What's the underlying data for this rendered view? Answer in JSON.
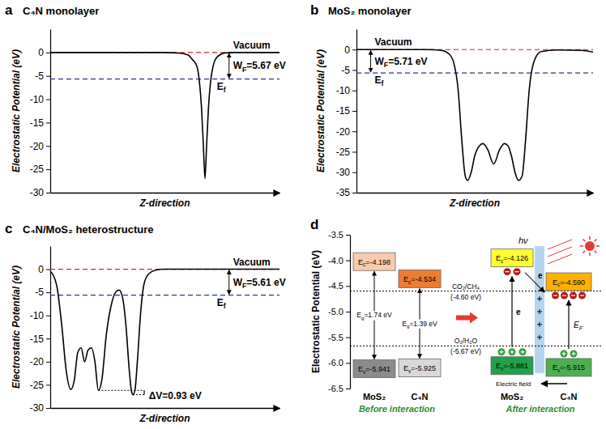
{
  "chart_data": [
    {
      "type": "line",
      "panel_label": "a",
      "title": "C₄N monolayer",
      "x_label": "Z-direction",
      "y_label": "Electrostatic Potential (eV)",
      "xlim": [
        0,
        100
      ],
      "ylim": [
        -30,
        5
      ],
      "yticks": [
        0,
        -5,
        -10,
        -15,
        -20,
        -25,
        -30
      ],
      "tick_labels": "y",
      "color": "#000000",
      "x": [
        0,
        50,
        56,
        60,
        62,
        64,
        65,
        66,
        66.8,
        67.5,
        68.2,
        69,
        70,
        71,
        72,
        74,
        76,
        80,
        100
      ],
      "values": [
        0,
        0,
        -0.1,
        -0.5,
        -1.5,
        -3,
        -6,
        -12,
        -20,
        -27,
        -20,
        -12,
        -6,
        -3,
        -1.5,
        -0.5,
        -0.1,
        0,
        0
      ],
      "levels": [
        {
          "label": "Vacuum",
          "value": 0,
          "color": "#c62828",
          "line_style": "dashed"
        },
        {
          "label": [
            "E",
            "f"
          ],
          "value": -5.67,
          "color": "#2e3192",
          "line_style": "dashed"
        }
      ],
      "work_function": {
        "label": [
          "W",
          "F",
          "=5.67 eV"
        ]
      }
    },
    {
      "type": "line",
      "panel_label": "b",
      "title": "MoS₂ monolayer",
      "x_label": "Z-direction",
      "y_label": "Electrostatic Potential (eV)",
      "xlim": [
        0,
        100
      ],
      "ylim": [
        -35,
        5
      ],
      "yticks": [
        0,
        -5,
        -10,
        -15,
        -20,
        -25,
        -30,
        -35
      ],
      "tick_labels": "y",
      "color": "#000000",
      "x": [
        0,
        30,
        36,
        39,
        41,
        43,
        44.5,
        46,
        47,
        48.5,
        50,
        52,
        53.5,
        55.5,
        58,
        60.5,
        62.5,
        64,
        65.5,
        67,
        68.5,
        70,
        71.5,
        73,
        75,
        78,
        85,
        95,
        100
      ],
      "values": [
        0,
        0,
        -0.2,
        -1,
        -3,
        -10,
        -22,
        -31,
        -32,
        -30,
        -26,
        -23.5,
        -23,
        -24.5,
        -28,
        -24.5,
        -23,
        -23.5,
        -26,
        -30,
        -32,
        -31,
        -22,
        -10,
        -3,
        -0.5,
        -0.1,
        -0.2,
        -0.6
      ],
      "levels": [
        {
          "label": "Vacuum",
          "value": 0,
          "color": "#c62828",
          "line_style": "dashed"
        },
        {
          "label": [
            "E",
            "f"
          ],
          "value": -5.71,
          "color": "#2e3192",
          "line_style": "dashed"
        }
      ],
      "work_function": {
        "label": [
          "W",
          "F",
          "=5.71 eV"
        ]
      }
    },
    {
      "type": "line",
      "panel_label": "c",
      "title": "C₄N/MoS₂ heterostructure",
      "x_label": "Z-direction",
      "y_label": "Electrostatic Potential (eV)",
      "xlim": [
        0,
        100
      ],
      "ylim": [
        -30,
        5
      ],
      "yticks": [
        0,
        -5,
        -10,
        -15,
        -20,
        -25,
        -30
      ],
      "tick_labels": "y",
      "color": "#000000",
      "x": [
        0,
        1,
        3,
        5,
        7,
        9,
        10.5,
        12,
        13.5,
        15,
        16.5,
        18,
        19.5,
        21,
        22.5,
        24.5,
        26.5,
        28.5,
        30,
        31.5,
        33,
        34.5,
        35.5,
        36.2,
        37,
        38,
        39.5,
        41,
        43,
        46,
        50,
        100
      ],
      "values": [
        -0.5,
        -1,
        -4,
        -12,
        -22,
        -26,
        -24,
        -18,
        -17,
        -20,
        -17.5,
        -17,
        -20,
        -26.2,
        -24,
        -14,
        -8,
        -5,
        -4.5,
        -6,
        -12,
        -22,
        -26.5,
        -27.13,
        -26,
        -20,
        -9,
        -3,
        -1,
        -0.2,
        0,
        0
      ],
      "levels": [
        {
          "label": "Vacuum",
          "value": 0,
          "color": "#c62828",
          "line_style": "dashed"
        },
        {
          "label": [
            "E",
            "f"
          ],
          "value": -5.61,
          "color": "#2e3192",
          "line_style": "dashed"
        }
      ],
      "work_function": {
        "label": [
          "W",
          "F",
          "=5.61 eV"
        ]
      },
      "delta_v": {
        "label": "ΔV=0.93 eV",
        "levels": [
          -26.2,
          -27.13
        ],
        "line_style": "dotted"
      }
    },
    {
      "type": "energy_levels",
      "panel_label": "d",
      "y_label": "Electrostatic Potential (eV)",
      "ylim": [
        -6.5,
        -3.5
      ],
      "yticks": [
        -3.5,
        {
          "value": -4,
          "label": "-4.0"
        },
        -4.5,
        {
          "value": -5,
          "label": "-5.0"
        },
        -5.5,
        {
          "value": -6,
          "label": "-6.0"
        },
        -6.5
      ],
      "groups": [
        {
          "label": "Before interaction",
          "color": "#2e8b2e",
          "columns": [
            {
              "name": "MoS₂",
              "ec": -4.198,
              "ev": -5.941,
              "ec_label": [
                "E",
                "c",
                "=-4.198"
              ],
              "ev_label": [
                "E",
                "v",
                "=-5.941"
              ],
              "gap_label": [
                "E",
                "g",
                "=1.74 eV"
              ],
              "colors": [
                "#f8cbad",
                "#8c8c8c"
              ]
            },
            {
              "name": "C₄N",
              "ec": -4.534,
              "ev": -5.925,
              "ec_label": [
                "E",
                "c",
                "=-4.534"
              ],
              "ev_label": [
                "E",
                "v",
                "=-5.925"
              ],
              "gap_label": [
                "E",
                "g",
                "=1.39 eV"
              ],
              "colors": [
                "#ed7d31",
                "#d9d9d9"
              ]
            }
          ]
        },
        {
          "label": "After interaction",
          "color": "#2e8b2e",
          "columns": [
            {
              "name": "MoS₂",
              "ec": -4.126,
              "ev": -5.881,
              "ec_label": [
                "E",
                "c",
                "=-4.126"
              ],
              "ev_label": [
                "E",
                "v",
                "=-5.881"
              ],
              "colors": [
                "#ffff33",
                "#22a04b"
              ]
            },
            {
              "name": "C₄N",
              "ec": -4.59,
              "ev": -5.915,
              "ec_label": [
                "E",
                "c",
                "=-4.590"
              ],
              "ev_label": [
                "E",
                "v",
                "=-5.915"
              ],
              "colors": [
                "#ffb000",
                "#4caf50"
              ]
            }
          ]
        }
      ],
      "reference_levels": [
        {
          "label": "CO₂/CH₄ (-4.60 eV)",
          "value": -4.6,
          "line_style": "dotted"
        },
        {
          "label": "O₂/H₂O (-5.67 eV)",
          "value": -5.67,
          "line_style": "dotted"
        }
      ],
      "light_label": "hν",
      "field_label": "Electric field",
      "electron_labels": [
        "e",
        "e"
      ],
      "fermi_label": [
        "E",
        "F"
      ]
    }
  ]
}
